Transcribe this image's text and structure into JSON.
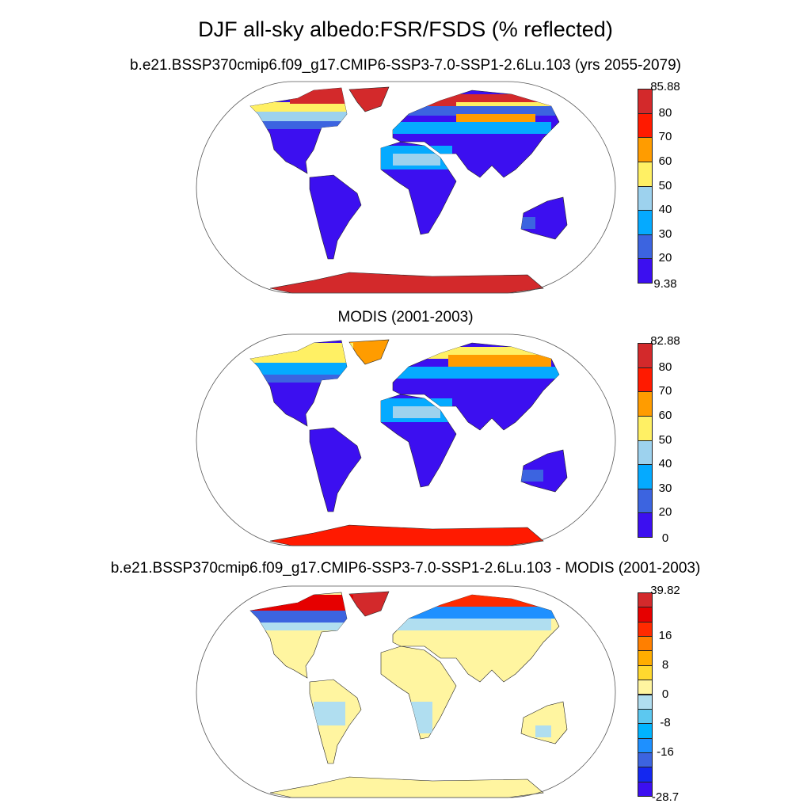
{
  "title": "DJF all-sky albedo:FSR/FSDS (% reflected)",
  "panels": [
    {
      "title": "b.e21.BSSP370cmip6.f09_g17.CMIP6-SSP3-7.0-SSP1-2.6Lu.103 (yrs 2055-2079)",
      "colorbar": {
        "labels": [
          "85.88",
          "80",
          "70",
          "60",
          "50",
          "40",
          "30",
          "20",
          "9.38"
        ],
        "colors": [
          "#d3292b",
          "#ff1a00",
          "#ff9c00",
          "#fff064",
          "#9dd2ee",
          "#05aaff",
          "#3c64e0",
          "#3c0ff0"
        ]
      }
    },
    {
      "title": "MODIS (2001-2003)",
      "colorbar": {
        "labels": [
          "82.88",
          "80",
          "70",
          "60",
          "50",
          "40",
          "30",
          "20",
          "0"
        ],
        "colors": [
          "#d3292b",
          "#ff1a00",
          "#ff9c00",
          "#fff064",
          "#9dd2ee",
          "#05aaff",
          "#3c64e0",
          "#3c0ff0"
        ]
      }
    },
    {
      "title": "b.e21.BSSP370cmip6.f09_g17.CMIP6-SSP3-7.0-SSP1-2.6Lu.103 - MODIS (2001-2003)",
      "colorbar": {
        "labels": [
          "39.82",
          "",
          "",
          "16",
          "",
          "8",
          "",
          "0",
          "",
          "-8",
          "",
          "-16",
          "",
          "",
          "-28.7"
        ],
        "colors": [
          "#d3292b",
          "#e60000",
          "#ff2a00",
          "#ff7f00",
          "#ffad00",
          "#ffd92f",
          "#fff5a0",
          "#b0def0",
          "#5cc8f0",
          "#00b4ff",
          "#1e90ff",
          "#3c64e0",
          "#1428f0",
          "#3c0ff0"
        ]
      }
    }
  ]
}
